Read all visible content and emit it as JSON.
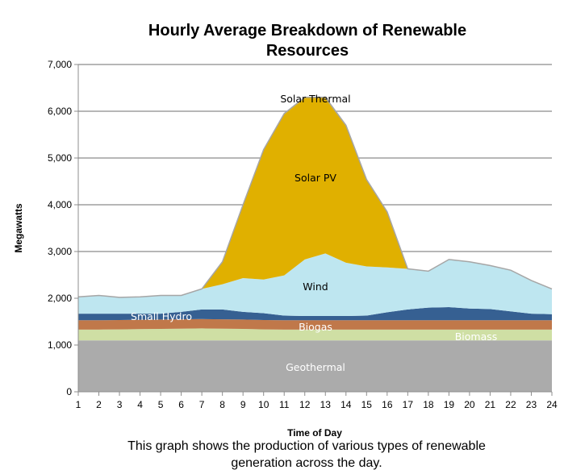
{
  "chart_data": {
    "type": "area",
    "stacked": true,
    "title": "Hourly Average Breakdown of Renewable Resources",
    "title_lines": [
      "Hourly Average Breakdown of Renewable",
      "Resources"
    ],
    "xlabel": "Time of Day",
    "ylabel": "Megawatts",
    "ylim": [
      0,
      7000
    ],
    "yticks": [
      "0",
      "1,000",
      "2,000",
      "3,000",
      "4,000",
      "5,000",
      "6,000",
      "7,000"
    ],
    "ytick_values": [
      0,
      1000,
      2000,
      3000,
      4000,
      5000,
      6000,
      7000
    ],
    "grid": true,
    "x": [
      1,
      2,
      3,
      4,
      5,
      6,
      7,
      8,
      9,
      10,
      11,
      12,
      13,
      14,
      15,
      16,
      17,
      18,
      19,
      20,
      21,
      22,
      23,
      24
    ],
    "series": [
      {
        "name": "Geothermal",
        "color": "#ababab",
        "label_color": "#ffffff",
        "values": [
          1100,
          1100,
          1100,
          1100,
          1100,
          1100,
          1100,
          1100,
          1100,
          1100,
          1100,
          1100,
          1100,
          1100,
          1100,
          1100,
          1100,
          1100,
          1100,
          1100,
          1100,
          1100,
          1100,
          1100
        ]
      },
      {
        "name": "Biomass",
        "color": "#cfdfa4",
        "label_color": "#ffffff",
        "values": [
          230,
          230,
          235,
          240,
          245,
          250,
          255,
          250,
          245,
          235,
          230,
          230,
          230,
          230,
          230,
          230,
          230,
          230,
          230,
          230,
          230,
          230,
          230,
          230
        ]
      },
      {
        "name": "Biogas",
        "color": "#c0784a",
        "label_color": "#ffffff",
        "values": [
          200,
          200,
          200,
          200,
          200,
          200,
          200,
          200,
          200,
          200,
          200,
          200,
          200,
          200,
          200,
          200,
          200,
          200,
          200,
          200,
          200,
          200,
          200,
          200
        ]
      },
      {
        "name": "Small Hydro",
        "color": "#366092",
        "label_color": "#ffffff",
        "values": [
          140,
          140,
          135,
          130,
          125,
          160,
          205,
          210,
          165,
          145,
          100,
          90,
          90,
          90,
          100,
          170,
          230,
          270,
          280,
          250,
          240,
          190,
          140,
          130
        ]
      },
      {
        "name": "Wind",
        "color": "#bee6f0",
        "label_color": "#000000",
        "values": [
          360,
          390,
          350,
          360,
          390,
          350,
          440,
          540,
          720,
          720,
          860,
          1210,
          1340,
          1140,
          1050,
          960,
          870,
          780,
          1020,
          1000,
          930,
          880,
          710,
          540
        ]
      },
      {
        "name": "Solar PV",
        "color": "#e0b000",
        "label_color": "#000000",
        "values": [
          0,
          0,
          0,
          0,
          0,
          0,
          0,
          480,
          1570,
          2770,
          3440,
          3440,
          3310,
          2920,
          1850,
          1190,
          0,
          0,
          0,
          0,
          0,
          0,
          0,
          0
        ]
      },
      {
        "name": "Solar Thermal",
        "color": "#d4a800",
        "label_color": "#000000",
        "values": [
          0,
          0,
          0,
          0,
          0,
          0,
          0,
          0,
          0,
          10,
          20,
          30,
          30,
          20,
          10,
          0,
          0,
          0,
          0,
          0,
          0,
          0,
          0,
          0
        ]
      }
    ]
  },
  "caption": {
    "line1": "This graph shows the production of various types of renewable",
    "line2": "generation across the day."
  }
}
